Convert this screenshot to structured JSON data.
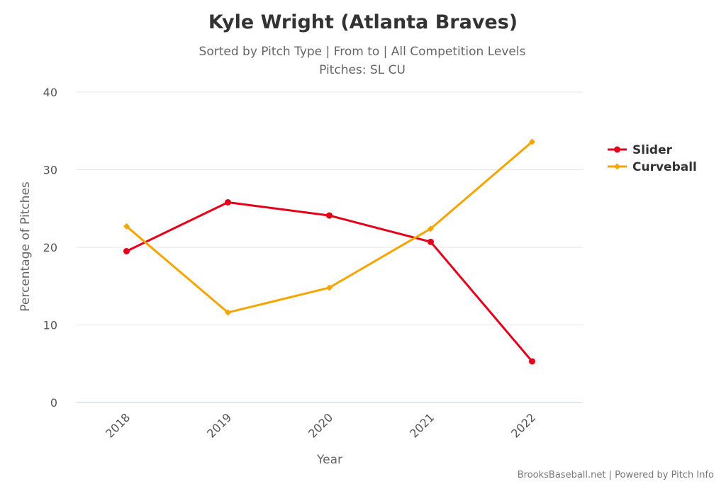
{
  "chart_data": {
    "type": "line",
    "title": "Kyle Wright (Atlanta Braves)",
    "subtitle_line1": "Sorted by Pitch Type | From to | All Competition Levels",
    "subtitle_line2": "Pitches: SL CU",
    "xlabel": "Year",
    "ylabel": "Percentage of Pitches",
    "categories": [
      "2018",
      "2019",
      "2020",
      "2021",
      "2022"
    ],
    "ylim": [
      0,
      40
    ],
    "yticks": [
      "0",
      "10",
      "20",
      "30",
      "40"
    ],
    "grid": true,
    "legend_position": "right",
    "series": [
      {
        "name": "Slider",
        "color": "#e3001b",
        "marker": "circle",
        "values": [
          19.5,
          25.8,
          24.1,
          20.7,
          5.3
        ]
      },
      {
        "name": "Curveball",
        "color": "#f5a500",
        "marker": "diamond",
        "values": [
          22.7,
          11.6,
          14.8,
          22.4,
          33.6
        ]
      }
    ],
    "credits": "BrooksBaseball.net | Powered by Pitch Info"
  }
}
